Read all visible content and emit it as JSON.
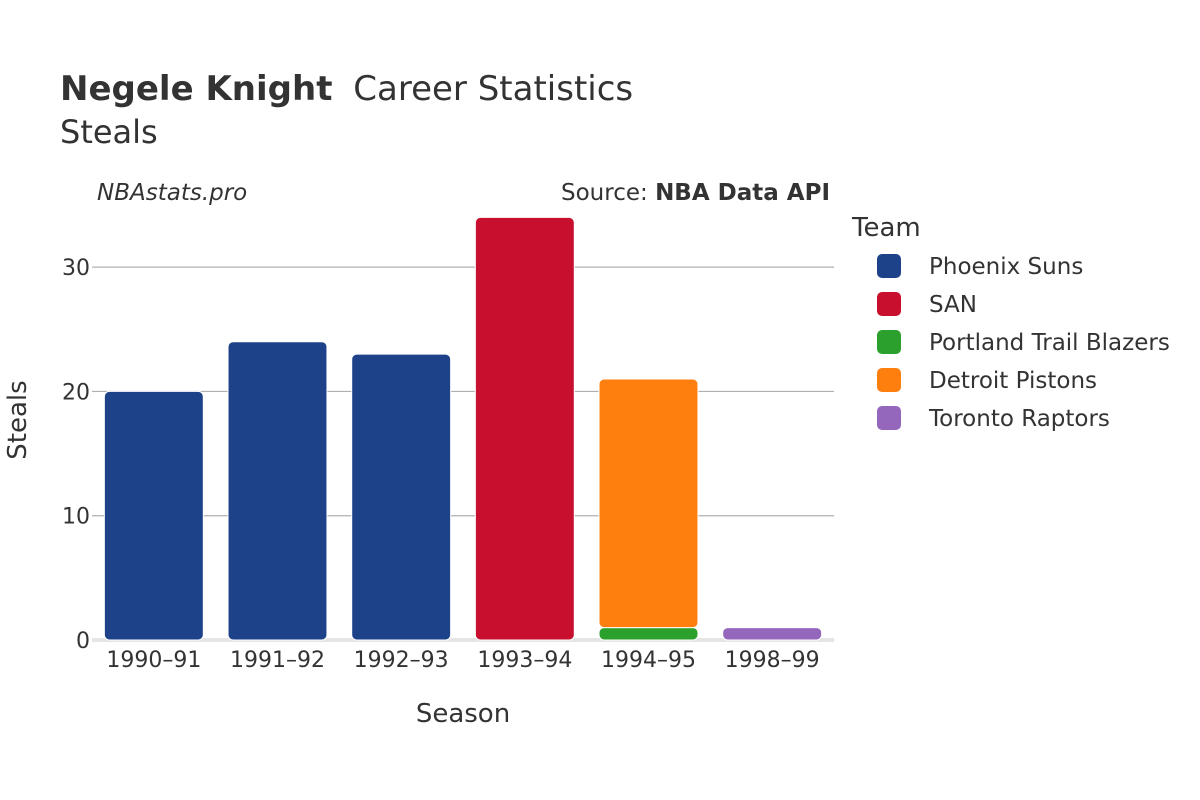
{
  "header": {
    "player_name": "Negele Knight",
    "title_suffix": "Career Statistics",
    "subtitle": "Steals"
  },
  "watermark": "NBAstats.pro",
  "source": {
    "prefix": "Source: ",
    "name": "NBA Data API"
  },
  "colors": {
    "Phoenix Suns": "#1d428a",
    "SAN": "#c8102e",
    "Portland Trail Blazers": "#2ca02c",
    "Detroit Pistons": "#ff7f0e",
    "Toronto Raptors": "#9467bd"
  },
  "chart_data": {
    "type": "bar",
    "stacked": true,
    "title": "Negele Knight Career Statistics",
    "subtitle": "Steals",
    "xlabel": "Season",
    "ylabel": "Steals",
    "ylim": [
      0,
      35
    ],
    "yticks": [
      0,
      10,
      20,
      30
    ],
    "grid": true,
    "legend_title": "Team",
    "legend_position": "right",
    "categories": [
      "1990–91",
      "1991–92",
      "1992–93",
      "1993–94",
      "1994–95",
      "1998–99"
    ],
    "series": [
      {
        "name": "Phoenix Suns",
        "values": [
          20,
          24,
          23,
          0,
          0,
          0
        ]
      },
      {
        "name": "SAN",
        "values": [
          0,
          0,
          0,
          34,
          0,
          0
        ]
      },
      {
        "name": "Portland Trail Blazers",
        "values": [
          0,
          0,
          0,
          0,
          1,
          0
        ]
      },
      {
        "name": "Detroit Pistons",
        "values": [
          0,
          0,
          0,
          0,
          20,
          0
        ]
      },
      {
        "name": "Toronto Raptors",
        "values": [
          0,
          0,
          0,
          0,
          0,
          1
        ]
      }
    ]
  }
}
